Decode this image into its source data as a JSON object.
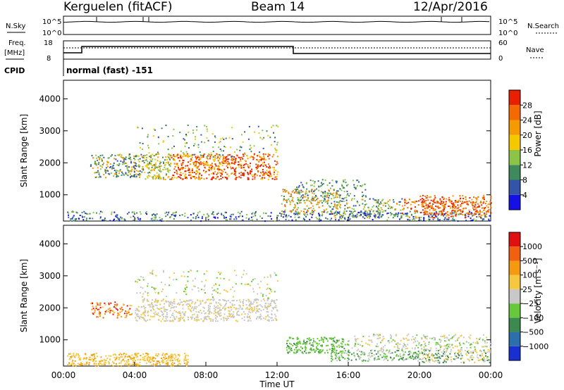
{
  "header": {
    "station": "Kerguelen (fitACF)",
    "beam": "Beam 14",
    "date": "12/Apr/2016"
  },
  "top_panels": {
    "nsky_label": "N.Sky",
    "nsearch_label": "N.Search",
    "nsky_ticks": [
      "10^5",
      "10^0"
    ],
    "nsky_right_ticks": [
      "10^5",
      "10^0"
    ],
    "freq_label_1": "Freq.",
    "freq_label_2": "[MHz]",
    "freq_ticks": [
      "18",
      "8"
    ],
    "nave_ticks": [
      "60",
      "0"
    ],
    "nave_label": "Nave",
    "cpid_label": "CPID",
    "cpid_value": "normal (fast) -151"
  },
  "chart_data": [
    {
      "type": "heatmap",
      "title": "",
      "ylabel": "Slant Range [km]",
      "xlabel": "",
      "ylim": [
        180,
        4580
      ],
      "xlim": [
        0,
        24
      ],
      "yticks": [
        "1000",
        "2000",
        "3000",
        "4000"
      ],
      "colorbar": {
        "label": "Power [dB]",
        "ticks": [
          "4",
          "8",
          "12",
          "16",
          "20",
          "24",
          "28"
        ],
        "colors": [
          "#1410e6",
          "#3454a8",
          "#3f8a5a",
          "#8cc44a",
          "#f5c800",
          "#f59a00",
          "#f26a00",
          "#e81f00"
        ]
      }
    },
    {
      "type": "heatmap",
      "title": "",
      "ylabel": "Slant Range [km]",
      "xlabel": "Time UT",
      "ylim": [
        180,
        4580
      ],
      "xlim": [
        0,
        24
      ],
      "yticks": [
        "1000",
        "2000",
        "3000",
        "4000"
      ],
      "xticks": [
        "00:00",
        "04:00",
        "08:00",
        "12:00",
        "16:00",
        "20:00",
        "00:00"
      ],
      "colorbar": {
        "label": "Velocity [m s⁻¹]",
        "ticks": [
          "1000",
          "500",
          "100",
          "25",
          "−25",
          "−100",
          "−500",
          "−1000"
        ],
        "colors": [
          "#1a2fd0",
          "#2d6fa8",
          "#3d8a50",
          "#66c83a",
          "#c8c8c8",
          "#f5c840",
          "#f59a10",
          "#f06010",
          "#e01010"
        ]
      }
    }
  ]
}
